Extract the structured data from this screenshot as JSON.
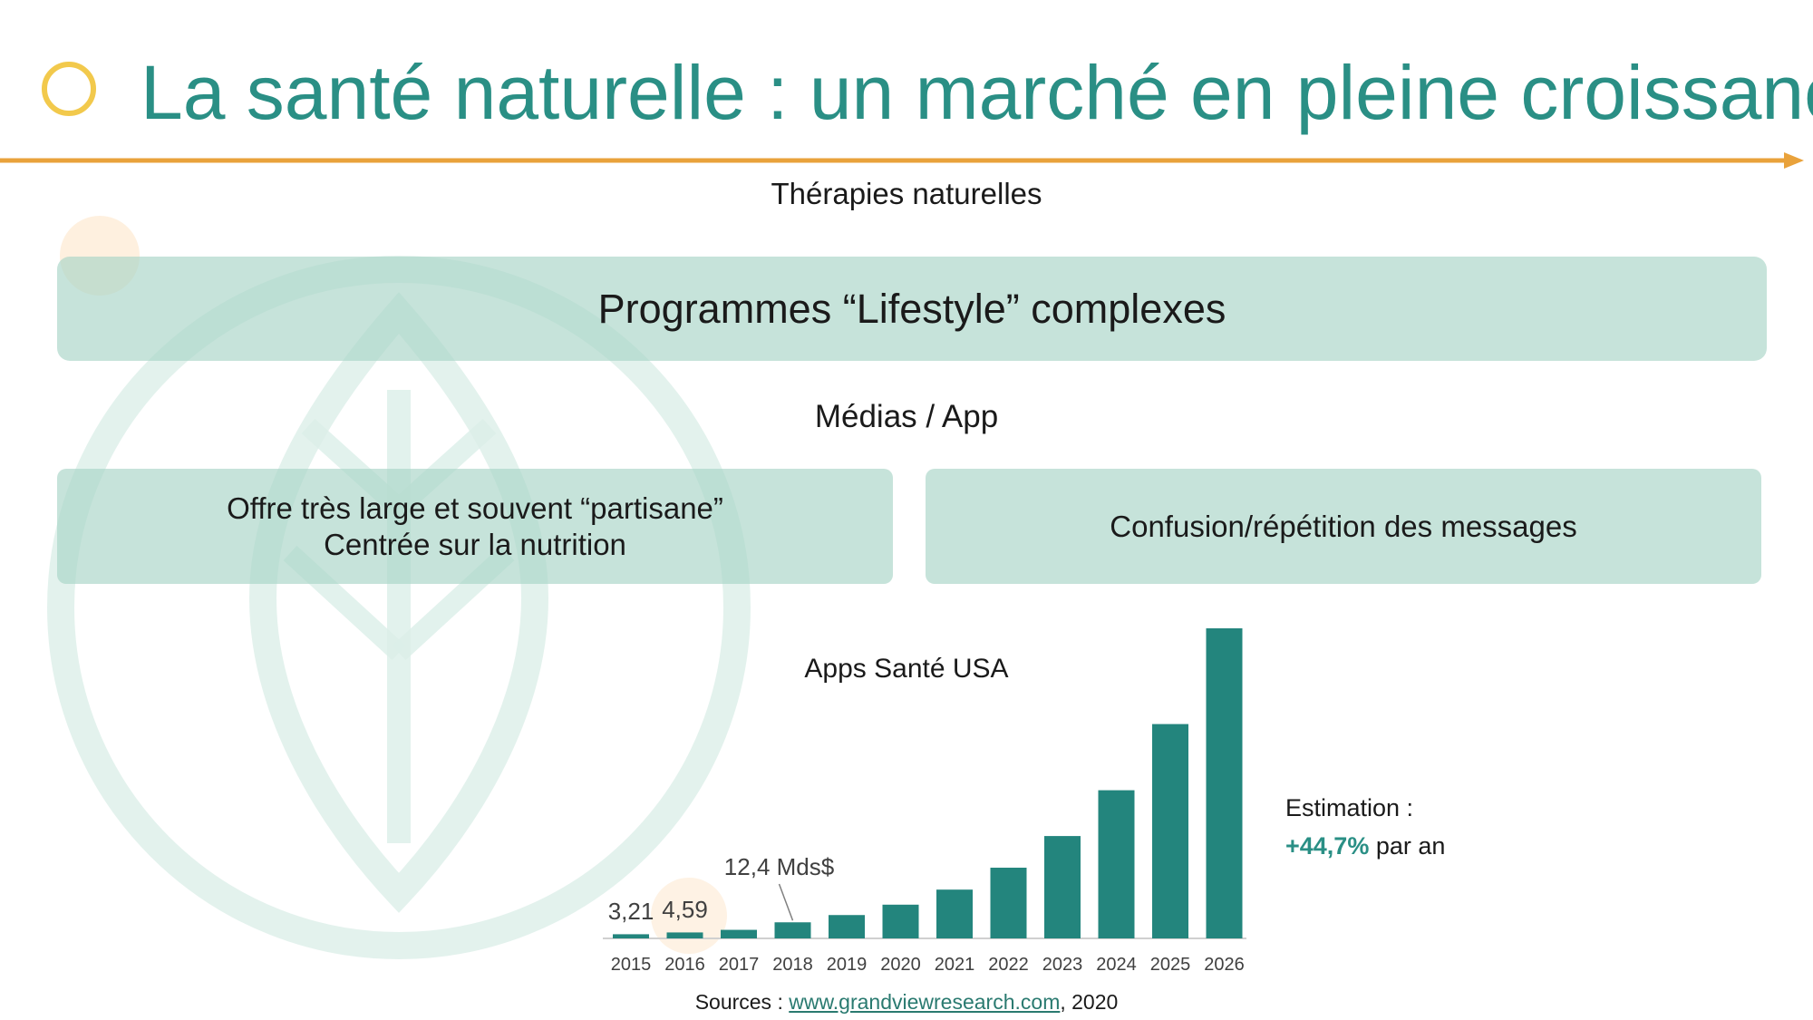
{
  "slide": {
    "title": "La santé naturelle : un marché en pleine croissance",
    "therapies_label": "Thérapies naturelles",
    "lifestyle_box": "Programmes “Lifestyle” complexes",
    "medias_label": "Médias / App",
    "offre_line1": "Offre très large et souvent “partisane”",
    "offre_line2": "Centrée sur la nutrition",
    "confusion_box": "Confusion/répétition des messages",
    "estimation_label": "Estimation :",
    "estimation_pct": "+44,7%",
    "estimation_suffix": "par an",
    "sources_prefix": "Sources :",
    "sources_link": "www.grandviewresearch.com",
    "sources_year": ", 2020",
    "accent_color": "#2a8f85",
    "orange_color": "#e9a23b",
    "yellow_color": "#f2c94c"
  },
  "chart_data": {
    "type": "bar",
    "title": "Apps Santé USA",
    "categories": [
      "2015",
      "2016",
      "2017",
      "2018",
      "2019",
      "2020",
      "2021",
      "2022",
      "2023",
      "2024",
      "2025",
      "2026"
    ],
    "values": [
      3.21,
      4.59,
      6.6,
      12.4,
      18.0,
      26.0,
      37.6,
      54.5,
      78.9,
      114.2,
      165.2,
      239.0
    ],
    "data_labels": [
      {
        "index": 0,
        "text": "3,21"
      },
      {
        "index": 1,
        "text": "4,59"
      },
      {
        "index": 3,
        "text": "12,4 Mds$"
      }
    ],
    "ylim": [
      0,
      239
    ],
    "bar_color": "#23857d",
    "grid": false,
    "legend": "none"
  }
}
